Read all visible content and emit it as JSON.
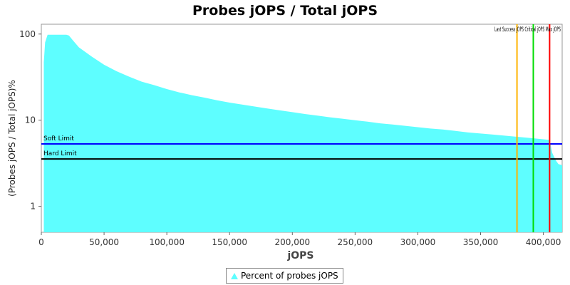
{
  "chart_data": {
    "type": "area",
    "title": "Probes jOPS / Total jOPS",
    "xlabel": "jOPS",
    "ylabel": "(Probes jOPS / Total jOPS)%",
    "yscale": "log",
    "xlim": [
      0,
      415000
    ],
    "ylim": [
      0.5,
      130
    ],
    "x_ticks": [
      0,
      50000,
      100000,
      150000,
      200000,
      250000,
      300000,
      350000,
      400000
    ],
    "x_tick_labels": [
      "0",
      "50,000",
      "100,000",
      "150,000",
      "200,000",
      "250,000",
      "300,000",
      "350,000",
      "400,000"
    ],
    "y_ticks": [
      1,
      10,
      100
    ],
    "y_tick_labels": [
      "1",
      "10",
      "100"
    ],
    "grid": false,
    "legend_position": "bottom-center",
    "series": [
      {
        "name": "Percent of probes jOPS",
        "color": "#5efeff",
        "x": [
          2000,
          3000,
          5000,
          10000,
          15000,
          20000,
          22000,
          25000,
          30000,
          40000,
          50000,
          60000,
          70000,
          80000,
          90000,
          100000,
          110000,
          120000,
          130000,
          140000,
          150000,
          160000,
          170000,
          180000,
          190000,
          200000,
          210000,
          220000,
          230000,
          240000,
          250000,
          260000,
          270000,
          280000,
          290000,
          300000,
          310000,
          320000,
          330000,
          340000,
          350000,
          360000,
          370000,
          380000,
          390000,
          400000,
          405000,
          407000,
          410000,
          412000,
          415000
        ],
        "y": [
          47,
          80,
          98,
          98,
          98,
          98,
          96,
          85,
          70,
          55,
          44,
          37,
          32,
          28,
          25.5,
          23,
          21,
          19.5,
          18.3,
          17,
          16,
          15.2,
          14.4,
          13.7,
          13,
          12.4,
          11.8,
          11.3,
          10.8,
          10.4,
          10,
          9.6,
          9.2,
          8.9,
          8.6,
          8.3,
          8,
          7.8,
          7.5,
          7.2,
          7,
          6.8,
          6.6,
          6.4,
          6.2,
          6,
          5.9,
          4.2,
          3.4,
          3.1,
          3
        ]
      }
    ],
    "horizontal_lines": [
      {
        "label": "Soft Limit",
        "y": 5.3,
        "color": "#0000ff"
      },
      {
        "label": "Hard Limit",
        "y": 3.55,
        "color": "#000000"
      }
    ],
    "vertical_lines": [
      {
        "label": "Last Success jOPS",
        "x": 379000,
        "color": "#ffb300"
      },
      {
        "label": "Critical jOPS",
        "x": 392000,
        "color": "#00dd00"
      },
      {
        "label": "Max jOPS",
        "x": 405000,
        "color": "#ff0000"
      }
    ],
    "vertical_line_label_text": "Last Success jOPS Critical jOPS Max jOPS"
  }
}
